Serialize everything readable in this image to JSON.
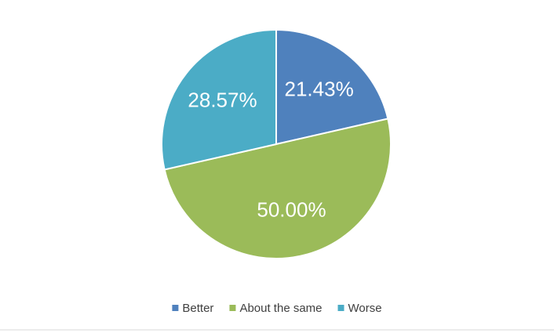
{
  "chart_data": {
    "type": "pie",
    "categories": [
      "Better",
      "About the same",
      "Worse"
    ],
    "values": [
      21.43,
      50.0,
      28.57
    ],
    "value_labels": [
      "21.43%",
      "50.00%",
      "28.57%"
    ],
    "colors": [
      "#4f81bd",
      "#9bbb59",
      "#4bacc6"
    ],
    "legend": "bottom"
  }
}
